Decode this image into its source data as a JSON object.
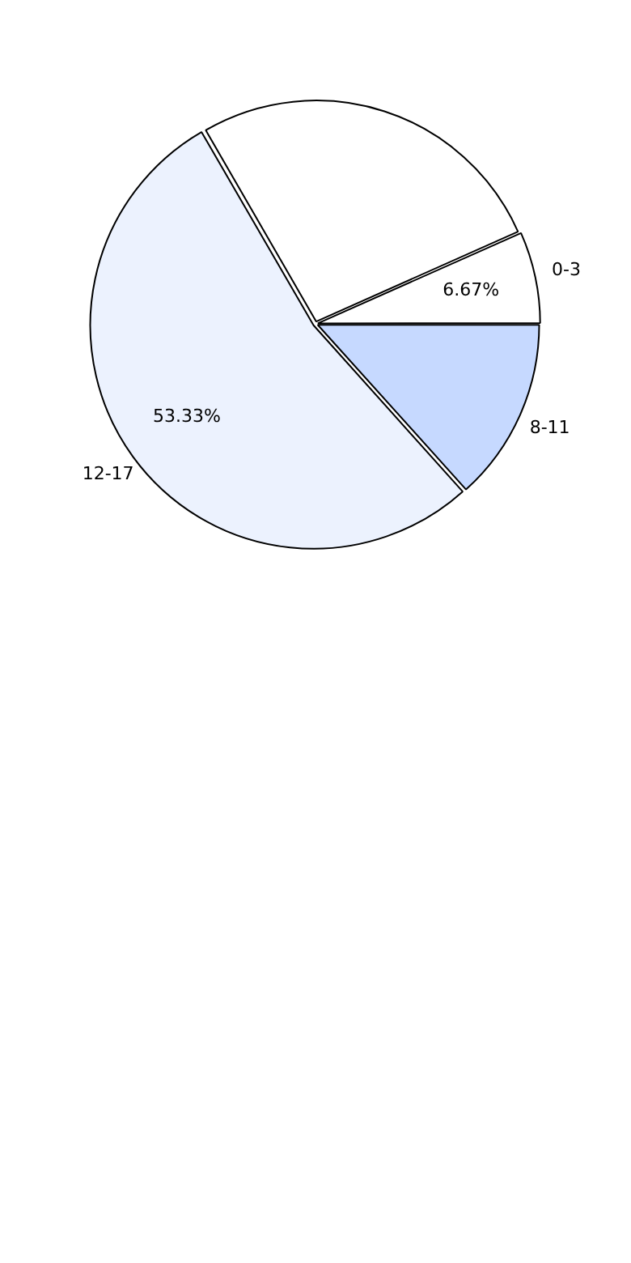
{
  "chart_data": {
    "type": "pie",
    "categories": [
      "8-11",
      "12-17",
      null,
      "0-3"
    ],
    "values": [
      13.33,
      53.33,
      26.67,
      6.67
    ],
    "colors": [
      "#c6d9ff",
      "#ecf2fe",
      "#ffffff",
      "#ffffff"
    ],
    "value_labels": [
      null,
      "53.33%",
      null,
      "6.67%"
    ],
    "legend": false
  }
}
